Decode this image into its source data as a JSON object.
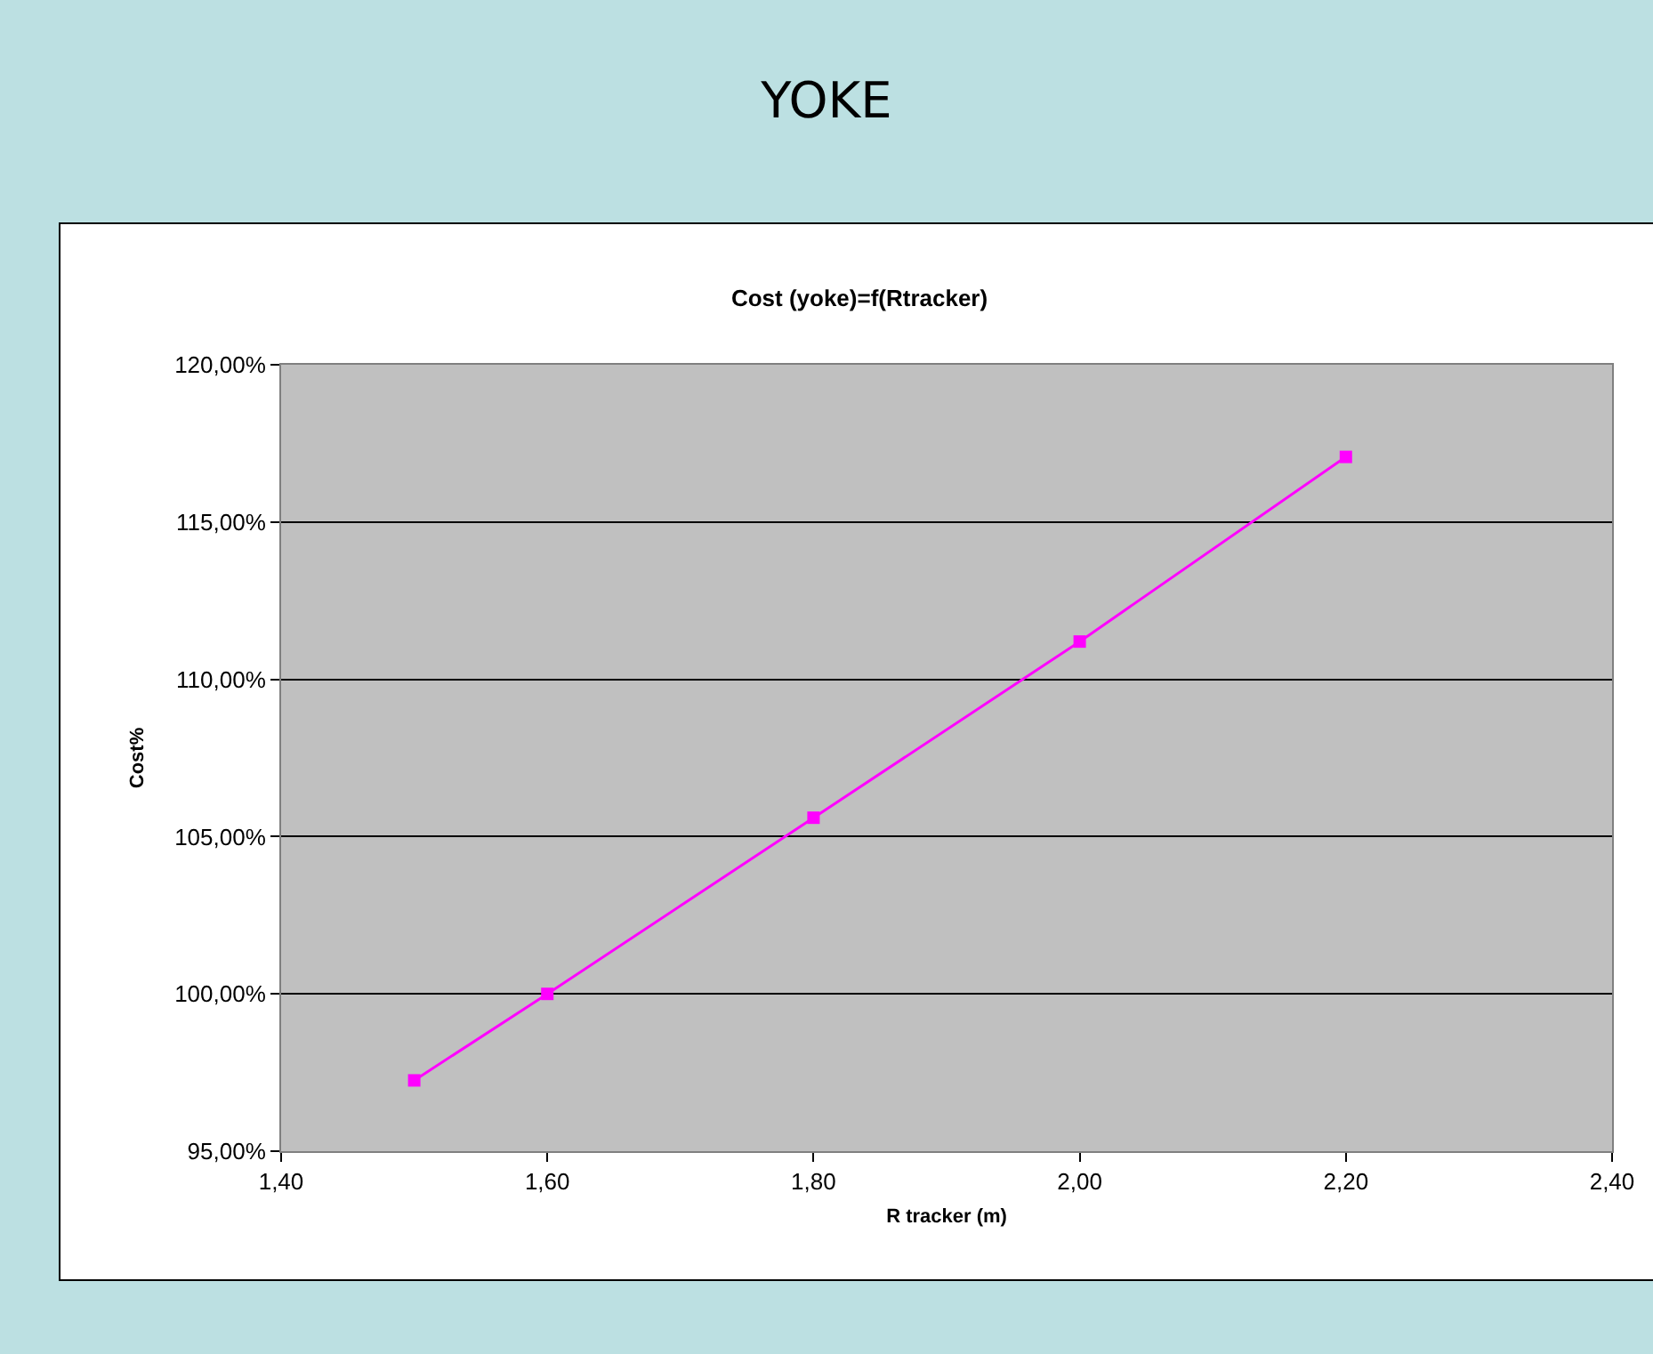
{
  "chart_data": {
    "type": "line",
    "title": "YOKE",
    "subtitle": "Cost (yoke)=f(Rtracker)",
    "xlabel": "R tracker (m)",
    "ylabel": "Cost%",
    "x": [
      1.5,
      1.6,
      1.8,
      2.0,
      2.2
    ],
    "series": [
      {
        "color": "#ff00ff",
        "values": [
          97.25,
          100,
          105.6,
          111.2,
          117.07
        ]
      }
    ],
    "xlim": [
      1.4,
      2.4
    ],
    "xticks": [
      {
        "value": 1.4,
        "label": "1,40"
      },
      {
        "value": 1.6,
        "label": "1,60"
      },
      {
        "value": 1.8,
        "label": "1,80"
      },
      {
        "value": 2.0,
        "label": "2,00"
      },
      {
        "value": 2.2,
        "label": "2,20"
      },
      {
        "value": 2.4,
        "label": "2,40"
      }
    ],
    "ylim": [
      95,
      120
    ],
    "yticks": [
      {
        "value": 95,
        "label": "95,00%"
      },
      {
        "value": 100,
        "label": "100,00%"
      },
      {
        "value": 105,
        "label": "105,00%"
      },
      {
        "value": 110,
        "label": "110,00%"
      },
      {
        "value": 115,
        "label": "115,00%"
      },
      {
        "value": 120,
        "label": "120,00%"
      }
    ],
    "grid": "y",
    "marker": "square",
    "line_style": "solid"
  }
}
